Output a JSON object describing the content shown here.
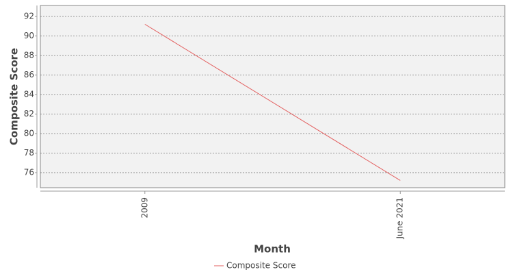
{
  "chart_data": {
    "type": "line",
    "x_label": "Month",
    "y_label": "Composite Score",
    "categories": [
      "2009",
      "June 2021"
    ],
    "series": [
      {
        "name": "Composite Score",
        "color": "#e35f5f",
        "values": [
          91.2,
          75.2
        ]
      }
    ],
    "ylim": [
      74.46,
      93.12
    ],
    "yticks": [
      76,
      78,
      80,
      82,
      84,
      86,
      88,
      90,
      92
    ],
    "grid": true,
    "legend": "bottom"
  }
}
